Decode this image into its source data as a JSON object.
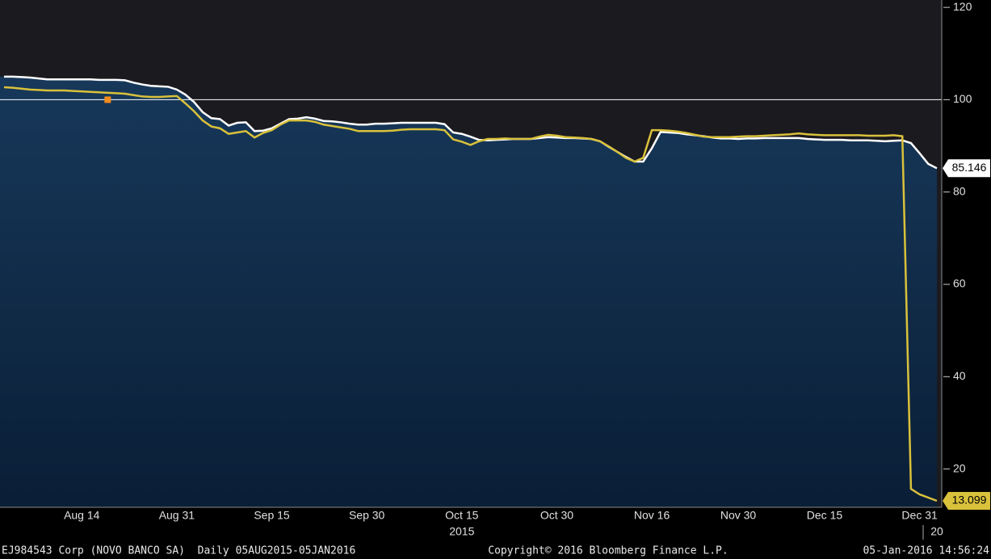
{
  "chart_data": {
    "type": "line",
    "categories": [
      null,
      null,
      null,
      null,
      null,
      null,
      null,
      null,
      null,
      "Aug 14",
      null,
      null,
      null,
      null,
      null,
      null,
      null,
      null,
      null,
      null,
      "Aug 31",
      null,
      null,
      null,
      null,
      null,
      null,
      null,
      null,
      null,
      null,
      "Sep 15",
      null,
      null,
      null,
      null,
      null,
      null,
      null,
      null,
      null,
      null,
      "Sep 30",
      null,
      null,
      null,
      null,
      null,
      null,
      null,
      null,
      null,
      null,
      "Oct 15",
      null,
      null,
      null,
      null,
      null,
      null,
      null,
      null,
      null,
      null,
      "Oct 30",
      null,
      null,
      null,
      null,
      null,
      null,
      null,
      null,
      null,
      null,
      "Nov 16",
      null,
      null,
      null,
      null,
      null,
      null,
      null,
      null,
      null,
      "Nov 30",
      null,
      null,
      null,
      null,
      null,
      null,
      null,
      null,
      null,
      "Dec 15",
      null,
      null,
      null,
      null,
      null,
      null,
      null,
      null,
      null,
      null,
      "Dec 31",
      null,
      null
    ],
    "year_labels": [
      null,
      null,
      null,
      null,
      null,
      null,
      null,
      null,
      null,
      null,
      null,
      null,
      null,
      null,
      null,
      null,
      null,
      null,
      null,
      null,
      null,
      null,
      null,
      null,
      null,
      null,
      null,
      null,
      null,
      null,
      null,
      null,
      null,
      null,
      null,
      null,
      null,
      null,
      null,
      null,
      null,
      null,
      null,
      null,
      null,
      null,
      null,
      null,
      null,
      null,
      null,
      null,
      null,
      "2015",
      null,
      null,
      null,
      null,
      null,
      null,
      null,
      null,
      null,
      null,
      null,
      null,
      null,
      null,
      null,
      null,
      null,
      null,
      null,
      null,
      null,
      null,
      null,
      null,
      null,
      null,
      null,
      null,
      null,
      null,
      null,
      null,
      null,
      null,
      null,
      null,
      null,
      null,
      null,
      null,
      null,
      null,
      null,
      null,
      null,
      null,
      null,
      null,
      null,
      null,
      null,
      null,
      null,
      null,
      "20"
    ],
    "series": [
      {
        "color": "#ffffff",
        "fill": true,
        "values": [
          105,
          105,
          104.9,
          104.8,
          104.6,
          104.4,
          104.4,
          104.4,
          104.4,
          104.4,
          104.4,
          104.3,
          104.3,
          104.3,
          104.2,
          103.7,
          103.3,
          103,
          102.9,
          102.8,
          102.2,
          101.1,
          99.5,
          97.3,
          96,
          95.8,
          94.4,
          95,
          95.1,
          93.2,
          93.3,
          93.8,
          94.8,
          95.8,
          95.9,
          96.2,
          95.9,
          95.4,
          95.3,
          95.1,
          94.8,
          94.6,
          94.6,
          94.8,
          94.8,
          94.9,
          95,
          95,
          95,
          95,
          95,
          94.7,
          92.9,
          92.6,
          92,
          91.3,
          91.2,
          91.3,
          91.4,
          91.5,
          91.5,
          91.5,
          91.7,
          91.9,
          91.8,
          91.7,
          91.7,
          91.6,
          91.5,
          91,
          89.8,
          88.7,
          87.6,
          86.6,
          86.6,
          89.5,
          93,
          92.9,
          92.8,
          92.5,
          92.3,
          92.1,
          91.8,
          91.6,
          91.6,
          91.5,
          91.6,
          91.6,
          91.7,
          91.7,
          91.7,
          91.7,
          91.7,
          91.5,
          91.4,
          91.3,
          91.3,
          91.3,
          91.2,
          91.2,
          91.2,
          91.1,
          91,
          91.1,
          91.2,
          90.6,
          88.4,
          86.1,
          85.146
        ]
      },
      {
        "color": "#d9c13b",
        "fill": false,
        "values": [
          102.7,
          102.6,
          102.4,
          102.2,
          102.1,
          102,
          102,
          102,
          101.9,
          101.8,
          101.7,
          101.6,
          101.5,
          101.4,
          101.3,
          101,
          100.7,
          100.6,
          100.6,
          100.7,
          100.8,
          99.2,
          97.5,
          95.5,
          94.2,
          93.8,
          92.6,
          92.9,
          93.2,
          91.8,
          92.8,
          93.4,
          94.6,
          95.5,
          95.5,
          95.5,
          95.2,
          94.6,
          94.3,
          94,
          93.7,
          93.2,
          93.2,
          93.2,
          93.2,
          93.3,
          93.5,
          93.6,
          93.6,
          93.6,
          93.6,
          93.4,
          91.4,
          90.9,
          90.2,
          91,
          91.5,
          91.5,
          91.6,
          91.5,
          91.5,
          91.5,
          92,
          92.4,
          92.2,
          91.9,
          91.8,
          91.7,
          91.5,
          91,
          89.9,
          88.7,
          87.4,
          86.6,
          87.4,
          93.4,
          93.4,
          93.3,
          93.1,
          92.8,
          92.4,
          92,
          91.9,
          91.9,
          91.9,
          92,
          92.1,
          92.1,
          92.2,
          92.3,
          92.4,
          92.5,
          92.7,
          92.5,
          92.4,
          92.3,
          92.3,
          92.3,
          92.3,
          92.3,
          92.2,
          92.2,
          92.2,
          92.3,
          92.1,
          15.7,
          14.5,
          13.8,
          13.099
        ]
      }
    ],
    "ylim": [
      11.7,
      121.6
    ],
    "yticks": [
      20,
      40,
      60,
      80,
      100,
      120
    ],
    "reference_line": 100,
    "marker": {
      "category_index": 12,
      "value": 100,
      "color": "#f28c1c"
    }
  },
  "footer": {
    "left": "EJ984543 Corp (NOVO BANCO SA)  Daily 05AUG2015-05JAN2016",
    "center": "Copyright© 2016 Bloomberg Finance L.P.",
    "right": "05-Jan-2016 14:56:24"
  }
}
